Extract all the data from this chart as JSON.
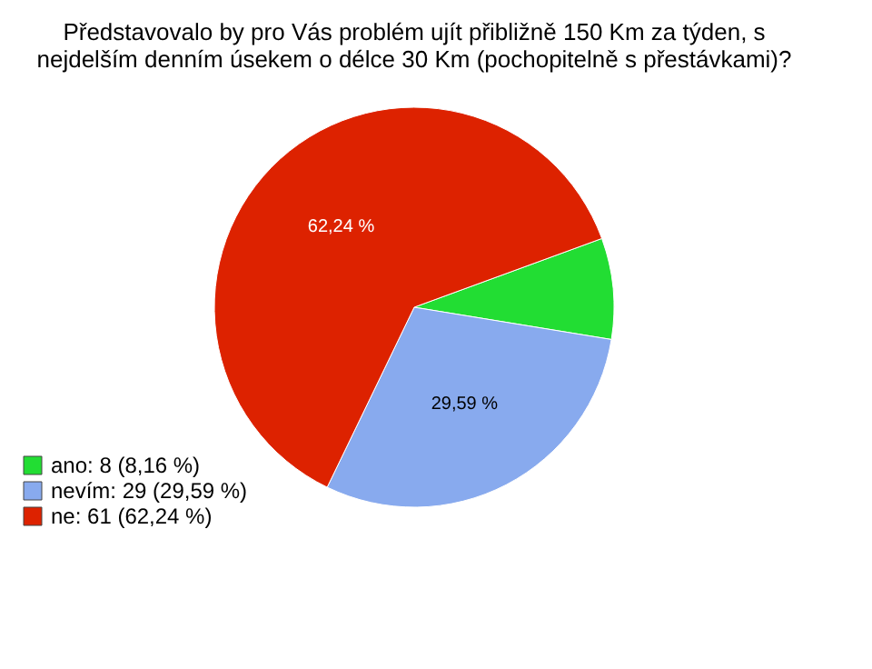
{
  "chart_data": {
    "type": "pie",
    "title": "Představovalo by pro Vás problém ujít přibližně 150 Km za týden, s nejdelším denním úsekem o délce 30 Km (pochopitelně s přestávkami)?",
    "categories": [
      "ano: 8 (8,16 %)",
      "nevím: 29 (29,59 %)",
      "ne: 61 (62,24 %)"
    ],
    "values": [
      8.16,
      29.59,
      62.24
    ],
    "colors": [
      "#22dd33",
      "#88aaee",
      "#dd2200"
    ],
    "value_labels": [
      null,
      "29,59 %",
      "62,24 %"
    ],
    "legend": "bottom left"
  }
}
